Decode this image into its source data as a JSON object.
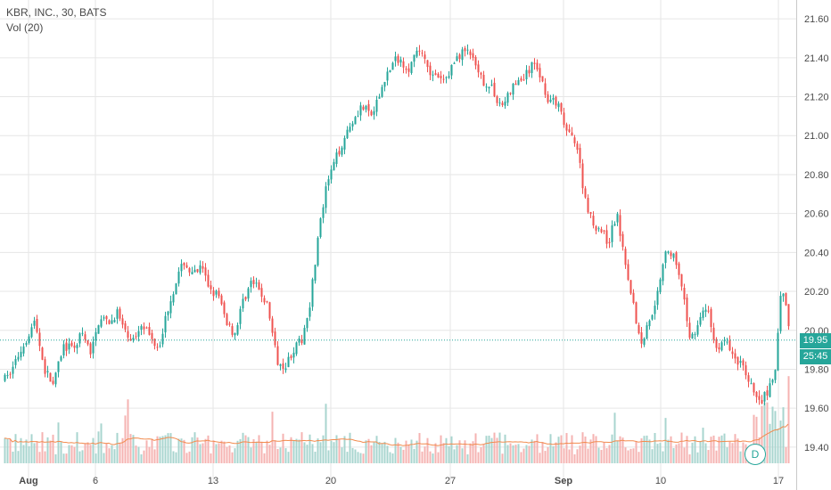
{
  "header": {
    "title": "KBR, INC., 30, BATS",
    "indicator": "Vol (20)"
  },
  "badges": {
    "last_price": "19.95",
    "countdown": "25:45",
    "dividend_marker": "D"
  },
  "colors": {
    "up": "#26a69a",
    "down": "#ef5350",
    "up_volume": "#a8d5cf",
    "down_volume": "#f5b3b2",
    "volume_ma": "#f28b4e",
    "grid": "#e6e6e6",
    "last_price_line": "#26a69a",
    "badge_green": "#26a69a"
  },
  "chart_data": {
    "type": "candlestick",
    "symbol": "KBR, INC.",
    "interval": "30",
    "exchange": "BATS",
    "y_axis": {
      "min": 19.34,
      "max": 21.66,
      "ticks": [
        "21.60",
        "21.40",
        "21.20",
        "21.00",
        "20.80",
        "20.60",
        "20.40",
        "20.20",
        "20.00",
        "19.80",
        "19.60",
        "19.40"
      ]
    },
    "x_ticks": [
      "Aug",
      "6",
      "13",
      "20",
      "27",
      "Sep",
      "10",
      "17"
    ],
    "last_price": 19.95,
    "indicator": {
      "name": "Vol",
      "length": 20
    },
    "price_path": [
      [
        "Aug",
        19.75
      ],
      [
        "Aug",
        19.85
      ],
      [
        "Aug",
        19.95
      ],
      [
        "Aug",
        20.05
      ],
      [
        "Aug",
        19.8
      ],
      [
        "Aug",
        19.72
      ],
      [
        "Aug",
        19.92
      ],
      [
        "Aug",
        19.9
      ],
      [
        "Aug",
        19.98
      ],
      [
        "Aug",
        19.88
      ],
      [
        "6",
        20.08
      ],
      [
        "6",
        20.02
      ],
      [
        "6",
        20.1
      ],
      [
        "6",
        19.98
      ],
      [
        "6",
        19.95
      ],
      [
        "6",
        20.05
      ],
      [
        "6",
        19.96
      ],
      [
        "6",
        19.92
      ],
      [
        "6",
        20.1
      ],
      [
        "6",
        20.25
      ],
      [
        "6",
        20.35
      ],
      [
        "6",
        20.28
      ],
      [
        "6",
        20.32
      ],
      [
        "6",
        20.22
      ],
      [
        "13",
        20.18
      ],
      [
        "13",
        20.05
      ],
      [
        "13",
        19.98
      ],
      [
        "13",
        20.15
      ],
      [
        "13",
        20.25
      ],
      [
        "13",
        20.2
      ],
      [
        "13",
        20.12
      ],
      [
        "13",
        19.85
      ],
      [
        "13",
        19.82
      ],
      [
        "13",
        19.9
      ],
      [
        "13",
        19.95
      ],
      [
        "13",
        20.15
      ],
      [
        "13",
        20.5
      ],
      [
        "13",
        20.75
      ],
      [
        "20",
        20.9
      ],
      [
        "20",
        21.05
      ],
      [
        "20",
        21.15
      ],
      [
        "20",
        21.1
      ],
      [
        "20",
        21.3
      ],
      [
        "20",
        21.4
      ],
      [
        "20",
        21.35
      ],
      [
        "20",
        21.45
      ],
      [
        "20",
        21.3
      ],
      [
        "20",
        21.28
      ],
      [
        "27",
        21.4
      ],
      [
        "27",
        21.45
      ],
      [
        "27",
        21.3
      ],
      [
        "27",
        21.25
      ],
      [
        "27",
        21.15
      ],
      [
        "27",
        21.25
      ],
      [
        "27",
        21.3
      ],
      [
        "27",
        21.38
      ],
      [
        "27",
        21.2
      ],
      [
        "27",
        21.15
      ],
      [
        "Sep",
        21.0
      ],
      [
        "Sep",
        20.98
      ],
      [
        "Sep",
        20.7
      ],
      [
        "Sep",
        20.55
      ],
      [
        "Sep",
        20.52
      ],
      [
        "Sep",
        20.45
      ],
      [
        "Sep",
        20.6
      ],
      [
        "Sep",
        20.38
      ],
      [
        "Sep",
        20.15
      ],
      [
        "Sep",
        19.92
      ],
      [
        "Sep",
        20.05
      ],
      [
        "Sep",
        20.18
      ],
      [
        "10",
        20.42
      ],
      [
        "10",
        20.38
      ],
      [
        "10",
        20.2
      ],
      [
        "10",
        19.95
      ],
      [
        "10",
        20.05
      ],
      [
        "10",
        20.12
      ],
      [
        "10",
        19.9
      ],
      [
        "10",
        19.95
      ],
      [
        "10",
        19.88
      ],
      [
        "10",
        19.82
      ],
      [
        "10",
        19.75
      ],
      [
        "10",
        19.62
      ],
      [
        "10",
        19.68
      ],
      [
        "10",
        19.75
      ],
      [
        "17",
        20.22
      ],
      [
        "17",
        20.1
      ],
      [
        "17",
        19.95
      ]
    ]
  }
}
